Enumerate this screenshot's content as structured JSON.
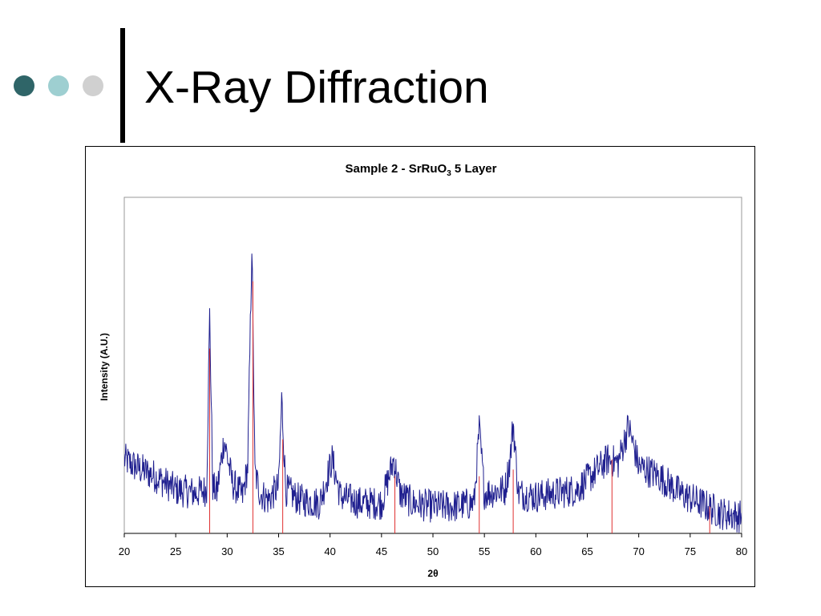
{
  "slide": {
    "title": "X-Ray Diffraction",
    "bullet_colors": [
      "#2f6568",
      "#9ecfd1",
      "#d0d0d0"
    ]
  },
  "chart_data": {
    "type": "line",
    "title": {
      "prefix": "Sample 2 - SrRuO",
      "sub": "3",
      "suffix": " 5 Layer"
    },
    "xlabel": "2θ",
    "ylabel": "Intensity (A.U.)",
    "xlim": [
      20,
      80
    ],
    "ylim": [
      0,
      100
    ],
    "x_ticks": [
      20,
      25,
      30,
      35,
      40,
      45,
      50,
      55,
      60,
      65,
      70,
      75,
      80
    ],
    "y_ticks_shown": false,
    "grid": false,
    "series": [
      {
        "type": "line",
        "color": "#1f1f8f",
        "x": [
          20,
          21,
          23,
          25,
          27,
          28,
          28.3,
          28.6,
          29,
          29.7,
          30.5,
          31.5,
          32,
          32.4,
          32.7,
          33.2,
          34,
          35,
          35.3,
          35.7,
          37,
          39,
          40.2,
          41,
          43,
          45,
          46.2,
          46.8,
          48,
          50,
          52,
          54,
          54.5,
          55,
          57,
          57.5,
          57.8,
          58.3,
          60,
          62,
          64,
          65,
          66,
          67,
          68,
          69,
          70,
          72,
          74,
          76,
          78,
          80
        ],
        "y": [
          22,
          20,
          17,
          13,
          12,
          13,
          65,
          14,
          12,
          28,
          15,
          11,
          20,
          86,
          18,
          12,
          10,
          14,
          40,
          13,
          10,
          9,
          22,
          11,
          9,
          9,
          22,
          12,
          9,
          8,
          8,
          9,
          31,
          12,
          13,
          22,
          33,
          12,
          11,
          12,
          13,
          16,
          19,
          22,
          21,
          32,
          20,
          17,
          12,
          9,
          6,
          5
        ]
      },
      {
        "type": "reference-peaks",
        "color": "#e03030",
        "x": [
          28.3,
          32.5,
          35.4,
          46.3,
          54.5,
          57.8,
          67.4,
          76.9
        ],
        "y": [
          55,
          75,
          28,
          17,
          17,
          19,
          22,
          8
        ]
      }
    ]
  }
}
